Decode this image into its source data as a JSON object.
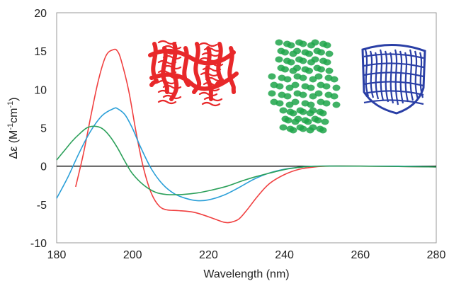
{
  "chart_data": {
    "type": "line",
    "title": "",
    "xlabel": "Wavelength (nm)",
    "ylabel_main": "Δε (M",
    "ylabel_sup1": "-1",
    "ylabel_mid": "cm",
    "ylabel_sup2": "-1",
    "ylabel_end": ")",
    "xlim": [
      180,
      280
    ],
    "ylim": [
      -10,
      20
    ],
    "x_ticks": [
      180,
      200,
      220,
      240,
      260,
      280
    ],
    "y_ticks": [
      -10,
      -5,
      0,
      5,
      10,
      15,
      20
    ],
    "grid": false,
    "legend": "none",
    "series": [
      {
        "color": "#f04040",
        "points": [
          [
            185,
            -2.7
          ],
          [
            187,
            1.5
          ],
          [
            189,
            6.5
          ],
          [
            191,
            11.2
          ],
          [
            193,
            14.4
          ],
          [
            195,
            15.2
          ],
          [
            196,
            15.0
          ],
          [
            197,
            13.8
          ],
          [
            199,
            9.8
          ],
          [
            201,
            4.2
          ],
          [
            203,
            -0.5
          ],
          [
            205,
            -3.6
          ],
          [
            207,
            -5.2
          ],
          [
            209,
            -5.7
          ],
          [
            212,
            -5.8
          ],
          [
            216,
            -6.0
          ],
          [
            220,
            -6.6
          ],
          [
            224,
            -7.3
          ],
          [
            226,
            -7.3
          ],
          [
            228,
            -6.9
          ],
          [
            230,
            -5.8
          ],
          [
            233,
            -3.9
          ],
          [
            236,
            -2.3
          ],
          [
            240,
            -1.1
          ],
          [
            244,
            -0.4
          ],
          [
            248,
            -0.1
          ],
          [
            252,
            0.0
          ],
          [
            260,
            0.0
          ],
          [
            270,
            -0.05
          ],
          [
            280,
            -0.1
          ]
        ]
      },
      {
        "color": "#2a9fd8",
        "points": [
          [
            180,
            -4.2
          ],
          [
            183,
            -1.4
          ],
          [
            186,
            1.8
          ],
          [
            189,
            4.6
          ],
          [
            192,
            6.6
          ],
          [
            195,
            7.5
          ],
          [
            196,
            7.5
          ],
          [
            198,
            6.7
          ],
          [
            200,
            4.9
          ],
          [
            202,
            2.6
          ],
          [
            205,
            -0.4
          ],
          [
            208,
            -2.4
          ],
          [
            211,
            -3.6
          ],
          [
            214,
            -4.2
          ],
          [
            217,
            -4.5
          ],
          [
            220,
            -4.4
          ],
          [
            224,
            -3.8
          ],
          [
            228,
            -2.8
          ],
          [
            232,
            -1.7
          ],
          [
            236,
            -0.9
          ],
          [
            240,
            -0.4
          ],
          [
            244,
            -0.15
          ],
          [
            248,
            0.0
          ],
          [
            260,
            0.0
          ],
          [
            270,
            0.0
          ],
          [
            280,
            -0.1
          ]
        ]
      },
      {
        "color": "#2ca05a",
        "points": [
          [
            180,
            0.8
          ],
          [
            182,
            2.0
          ],
          [
            184,
            3.2
          ],
          [
            186,
            4.2
          ],
          [
            188,
            5.0
          ],
          [
            190,
            5.2
          ],
          [
            192,
            4.9
          ],
          [
            194,
            3.9
          ],
          [
            196,
            2.4
          ],
          [
            198,
            0.6
          ],
          [
            200,
            -1.0
          ],
          [
            203,
            -2.5
          ],
          [
            206,
            -3.4
          ],
          [
            209,
            -3.7
          ],
          [
            213,
            -3.7
          ],
          [
            217,
            -3.5
          ],
          [
            221,
            -3.1
          ],
          [
            225,
            -2.6
          ],
          [
            229,
            -1.9
          ],
          [
            233,
            -1.3
          ],
          [
            237,
            -0.8
          ],
          [
            241,
            -0.35
          ],
          [
            245,
            -0.1
          ],
          [
            250,
            0.0
          ],
          [
            260,
            0.0
          ],
          [
            270,
            -0.05
          ],
          [
            280,
            -0.1
          ]
        ]
      }
    ]
  },
  "figure": {
    "protein_red_color": "#e8282a",
    "protein_green_color": "#1ea44a",
    "protein_blue_color": "#2a3fa6",
    "axis_color": "#000000",
    "frame_color": "#999999"
  }
}
